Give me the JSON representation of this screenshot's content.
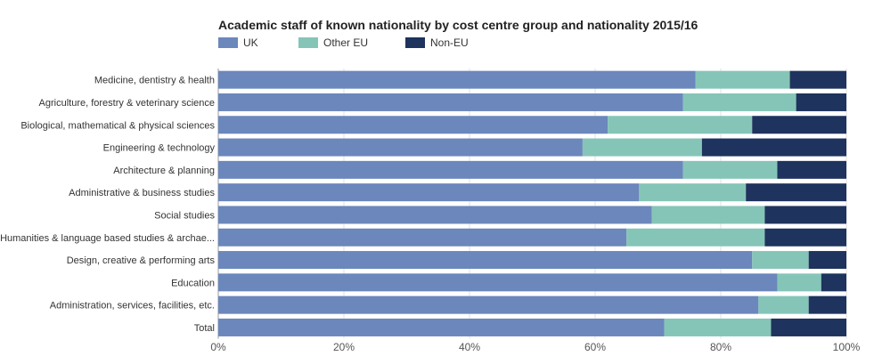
{
  "chart_data": {
    "type": "bar",
    "orientation": "horizontal",
    "stacked": "percent",
    "title": "Academic staff of known nationality by cost centre group and nationality 2015/16",
    "xlabel": "",
    "ylabel": "",
    "xlim": [
      0,
      100
    ],
    "x_ticks": [
      "0%",
      "20%",
      "40%",
      "60%",
      "80%",
      "100%"
    ],
    "legend_position": "top-left",
    "categories": [
      "Medicine, dentistry & health",
      "Agriculture, forestry & veterinary science",
      "Biological, mathematical & physical sciences",
      "Engineering & technology",
      "Architecture & planning",
      "Administrative & business studies",
      "Social studies",
      "Humanities & language based studies & archae...",
      "Design, creative & performing arts",
      "Education",
      "Administration, services, facilities, etc.",
      "Total"
    ],
    "series": [
      {
        "name": "UK",
        "color": "#6b87bc",
        "values": [
          76,
          74,
          62,
          58,
          74,
          67,
          69,
          65,
          85,
          89,
          86,
          71
        ]
      },
      {
        "name": "Other EU",
        "color": "#85c5b8",
        "values": [
          15,
          18,
          23,
          19,
          15,
          17,
          18,
          22,
          9,
          7,
          8,
          17
        ]
      },
      {
        "name": "Non-EU",
        "color": "#1e335d",
        "values": [
          9,
          8,
          15,
          23,
          11,
          16,
          13,
          13,
          6,
          4,
          6,
          12
        ]
      }
    ]
  }
}
